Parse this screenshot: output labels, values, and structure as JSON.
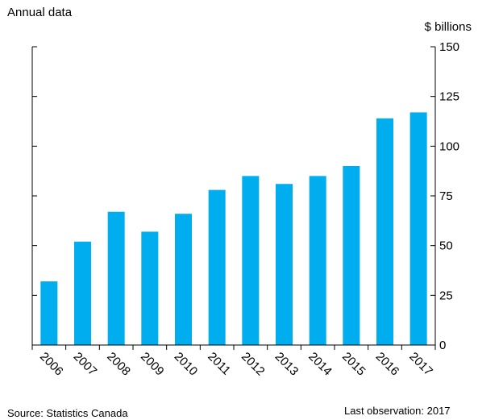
{
  "header": {
    "subtitle": "Annual data"
  },
  "footer": {
    "source": "Source: Statistics Canada",
    "last_observation": "Last observation: 2017"
  },
  "colors": {
    "bar": "#00aeef",
    "axis": "#000000"
  },
  "chart_data": {
    "type": "bar",
    "categories": [
      "2006",
      "2007",
      "2008",
      "2009",
      "2010",
      "2011",
      "2012",
      "2013",
      "2014",
      "2015",
      "2016",
      "2017"
    ],
    "values": [
      32,
      52,
      67,
      57,
      66,
      78,
      85,
      81,
      85,
      90,
      114,
      117
    ],
    "y_unit_label": "$ billions",
    "ylim": [
      0,
      150
    ],
    "yticks": [
      0,
      25,
      50,
      75,
      100,
      125,
      150
    ],
    "y_axis_side": "right",
    "grid": false,
    "legend": "none"
  }
}
